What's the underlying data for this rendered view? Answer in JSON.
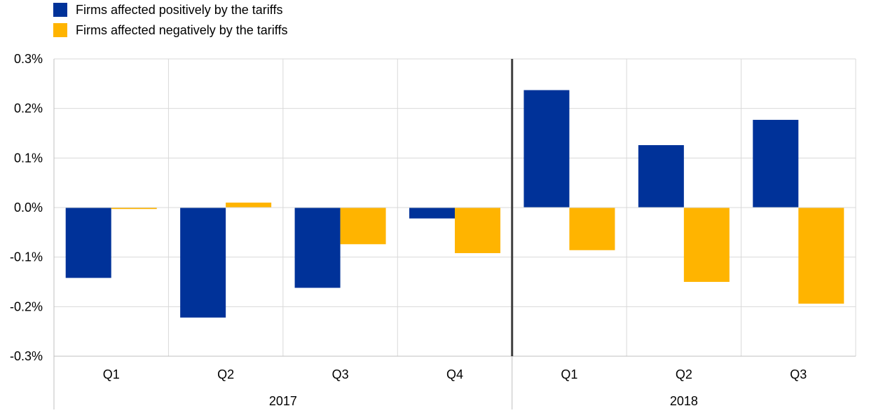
{
  "chart_data": {
    "type": "bar",
    "title": "",
    "xlabel": "",
    "ylabel": "",
    "ylim": [
      -0.3,
      0.3
    ],
    "y_ticks": [
      0.3,
      0.2,
      0.1,
      0.0,
      -0.1,
      -0.2,
      -0.3
    ],
    "y_tick_labels": [
      "0.3%",
      "0.2%",
      "0.1%",
      "0.0%",
      "-0.1%",
      "-0.2%",
      "-0.3%"
    ],
    "categories": [
      "Q1",
      "Q2",
      "Q3",
      "Q4",
      "Q1",
      "Q2",
      "Q3"
    ],
    "groups": [
      {
        "label": "2017",
        "count": 4
      },
      {
        "label": "2018",
        "count": 3
      }
    ],
    "series": [
      {
        "name": "Firms affected positively by the tariffs",
        "color": "#003299",
        "values": [
          -0.142,
          -0.222,
          -0.162,
          -0.022,
          0.237,
          0.126,
          0.177
        ]
      },
      {
        "name": "Firms affected negatively by the tariffs",
        "color": "#FFB400",
        "values": [
          -0.003,
          0.01,
          -0.074,
          -0.092,
          -0.086,
          -0.15,
          -0.194
        ]
      }
    ],
    "grid": true,
    "legend_position": "top-left"
  }
}
